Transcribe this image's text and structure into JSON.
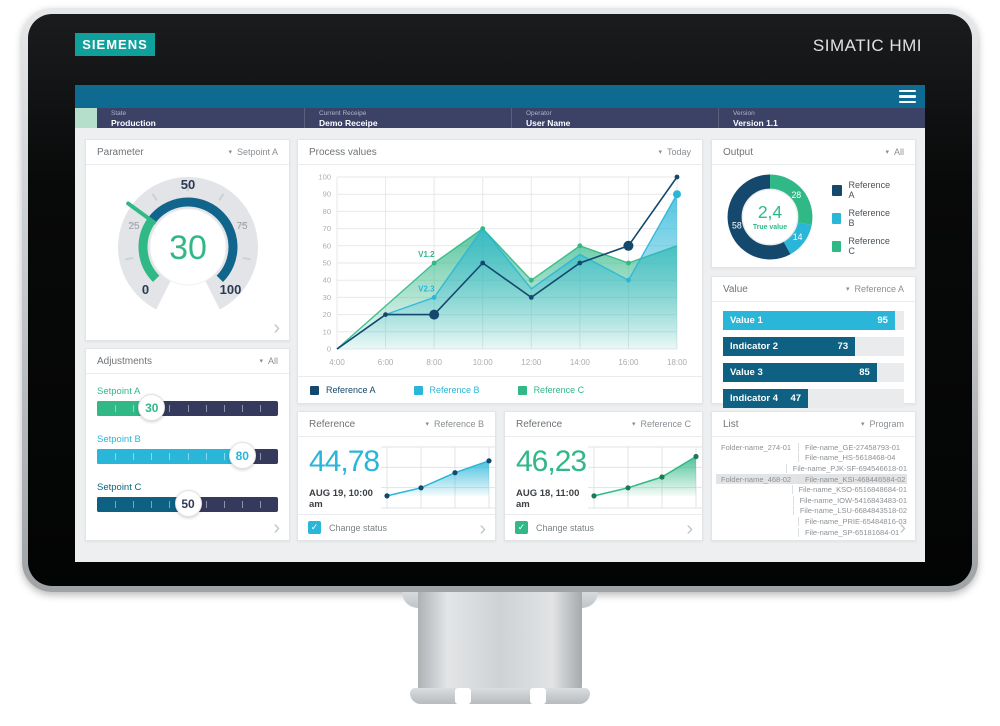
{
  "device": {
    "brand": "SIEMENS",
    "product": "SIMATIC HMI"
  },
  "header": {
    "menu_icon": "hamburger-icon"
  },
  "status_bar": [
    {
      "label": "State",
      "value": "Production"
    },
    {
      "label": "Current Receipe",
      "value": "Demo Receipe"
    },
    {
      "label": "Operator",
      "value": "User Name"
    },
    {
      "label": "Version",
      "value": "Version 1.1"
    }
  ],
  "colors": {
    "teal_bar": "#0E6A90",
    "status_navy": "#3C4166",
    "chip_green": "#B5DFCB",
    "ref_a": "#15486D",
    "ref_b": "#29B6D8",
    "ref_c": "#31B887",
    "petrol": "#0E6182"
  },
  "cards": {
    "parameter": {
      "title": "Parameter",
      "dropdown": "Setpoint A"
    },
    "adjustments": {
      "title": "Adjustments",
      "dropdown": "All"
    },
    "process": {
      "title": "Process values",
      "dropdown": "Today"
    },
    "output": {
      "title": "Output",
      "dropdown": "All"
    },
    "value": {
      "title": "Value",
      "dropdown": "Reference A"
    },
    "list": {
      "title": "List",
      "dropdown": "Program"
    },
    "reference1": {
      "title": "Reference",
      "dropdown": "Reference B",
      "value": "44,78",
      "date": "AUG 19, 10:00 am",
      "checkbox_label": "Change status",
      "checked": true,
      "accent": "#29B6D8"
    },
    "reference2": {
      "title": "Reference",
      "dropdown": "Reference C",
      "value": "46,23",
      "date": "AUG 18, 11:00 am",
      "checkbox_label": "Change status",
      "checked": true,
      "accent": "#31B887"
    }
  },
  "list_rows": [
    {
      "folder": "Folder-name_274-01",
      "file": "File-name_GE-27458793-01",
      "selected": false
    },
    {
      "folder": "",
      "file": "File-name_HS-5618468-04",
      "selected": false
    },
    {
      "folder": "",
      "file": "File-name_PJK-SF-694546618-01",
      "selected": false
    },
    {
      "folder": "Folder-name_468-02",
      "file": "File-name_KSI-468446584-02",
      "selected": true
    },
    {
      "folder": "",
      "file": "File-name_KSO-6516848684-01",
      "selected": false
    },
    {
      "folder": "",
      "file": "File-name_IOW-5416843483-01",
      "selected": false
    },
    {
      "folder": "",
      "file": "File-name_LSU-6684843518-02",
      "selected": false
    },
    {
      "folder": "",
      "file": "File-name_PRIE-65484816-03",
      "selected": false
    },
    {
      "folder": "",
      "file": "File-name_SP-65181684-01",
      "selected": false
    }
  ],
  "chart_data": [
    {
      "id": "gauge",
      "type": "gauge",
      "title": "Parameter",
      "value": 30,
      "min": 0,
      "max": 100,
      "major_ticks": [
        0,
        25,
        50,
        75,
        100
      ],
      "sweep_deg": 270,
      "value_color": "#31B887",
      "arc_value_color": "#31B887",
      "arc_rest_color": "#11658D"
    },
    {
      "id": "process",
      "type": "area",
      "title": "Process values",
      "x": [
        "4:00",
        "6:00",
        "8:00",
        "10:00",
        "12:00",
        "14:00",
        "16:00",
        "18:00"
      ],
      "ylim": [
        0,
        100
      ],
      "ytick_step": 10,
      "grid": true,
      "legend_position": "bottom",
      "series": [
        {
          "name": "Reference A",
          "type": "line",
          "color": "#15486D",
          "values": [
            0,
            20,
            20,
            50,
            30,
            50,
            60,
            100
          ],
          "dots": [
            1,
            2,
            3,
            4,
            5,
            6,
            7
          ],
          "big_dots": [
            2,
            6
          ]
        },
        {
          "name": "Reference B",
          "type": "area",
          "color": "#29B6D8",
          "values": [
            0,
            20,
            30,
            70,
            35,
            55,
            40,
            90
          ],
          "dots": [
            2,
            6,
            7
          ],
          "big_dots": [
            7
          ]
        },
        {
          "name": "Reference C",
          "type": "area",
          "color": "#31B887",
          "values": [
            0,
            25,
            50,
            70,
            40,
            60,
            50,
            60
          ],
          "dots": [
            2,
            3,
            4,
            5,
            6
          ],
          "big_dots": []
        }
      ],
      "annotations": [
        {
          "text": "V1.2",
          "series": 2,
          "index": 2,
          "color": "#31B887"
        },
        {
          "text": "V2.3",
          "series": 1,
          "index": 2,
          "color": "#29B6D8"
        }
      ]
    },
    {
      "id": "donut",
      "type": "pie",
      "center_value": "2,4",
      "center_label": "True value",
      "center_color": "#31B887",
      "slices_clockwise_from_top": [
        {
          "name": "Reference C",
          "value": 28,
          "color": "#31B887"
        },
        {
          "name": "Reference B",
          "value": 14,
          "color": "#29B6D8"
        },
        {
          "name": "Reference A",
          "value": 58,
          "color": "#15486D"
        }
      ],
      "legend": [
        {
          "name": "Reference A",
          "color": "#15486D"
        },
        {
          "name": "Reference B",
          "color": "#29B6D8"
        },
        {
          "name": "Reference C",
          "color": "#31B887"
        }
      ]
    },
    {
      "id": "value_bars",
      "type": "bar",
      "max": 100,
      "bars": [
        {
          "label": "Value 1",
          "value": 95,
          "color": "#29B6D8"
        },
        {
          "label": "Indicator 2",
          "value": 73,
          "color": "#0E6182"
        },
        {
          "label": "Value 3",
          "value": 85,
          "color": "#0E6182"
        },
        {
          "label": "Indicator 4",
          "value": 47,
          "color": "#0E6182"
        }
      ]
    },
    {
      "id": "sliders",
      "type": "slider-group",
      "min": 0,
      "max": 100,
      "items": [
        {
          "label": "Setpoint A",
          "value": 30,
          "color": "#31B887",
          "knob_color": "#31B887"
        },
        {
          "label": "Setpoint B",
          "value": 80,
          "color": "#29B6D8",
          "knob_color": "#29B6D8"
        },
        {
          "label": "Setpoint C",
          "value": 50,
          "color": "#0E6182",
          "knob_color": "#2F3A57"
        }
      ]
    },
    {
      "id": "spark_b",
      "type": "area",
      "color": "#29B6D8",
      "dot_color": "#15486D",
      "values": [
        15,
        30,
        58,
        80
      ],
      "ylim": [
        0,
        100
      ]
    },
    {
      "id": "spark_c",
      "type": "area",
      "color": "#31B887",
      "dot_color": "#1E7A55",
      "values": [
        15,
        30,
        50,
        88
      ],
      "ylim": [
        0,
        100
      ]
    }
  ]
}
